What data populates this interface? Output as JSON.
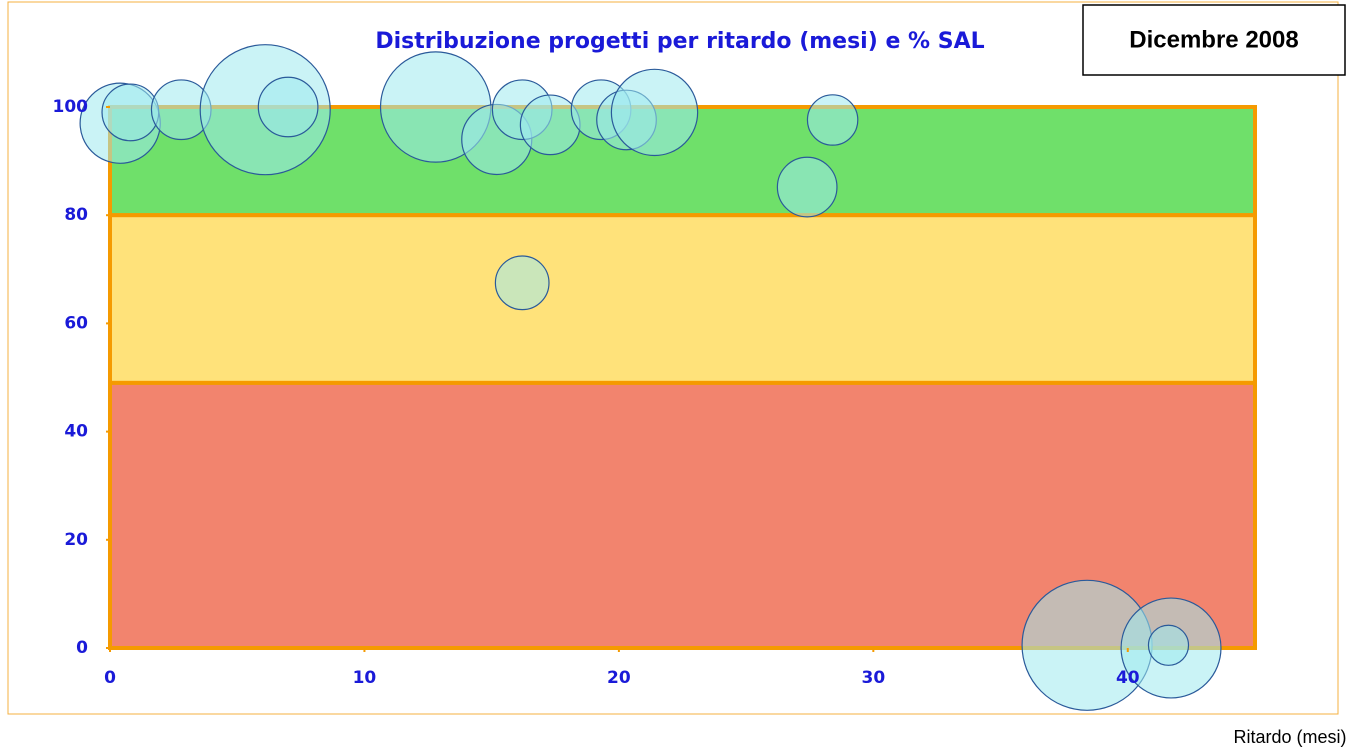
{
  "chart_data": {
    "type": "bubble",
    "title": "Distribuzione progetti per ritardo (mesi) e % SAL",
    "date_label": "Dicembre 2008",
    "x_label": "Ritardo (mesi)",
    "xlim": [
      0,
      45
    ],
    "xticks": [
      0,
      10,
      20,
      30,
      40
    ],
    "ylim": [
      0,
      100
    ],
    "yticks": [
      0,
      20,
      40,
      60,
      80,
      100
    ],
    "bands": [
      {
        "from": 80,
        "to": 100,
        "color": "#6fe06a"
      },
      {
        "from": 49,
        "to": 80,
        "color": "#ffe27a"
      },
      {
        "from": 0,
        "to": 49,
        "color": "#f2846e"
      }
    ],
    "band_border": "#f59a00",
    "bubble_color": "#9fe9ee",
    "bubble_edge": "#2a5a9a",
    "series": [
      {
        "x": [
          0.4,
          0.8,
          2.8,
          6.1,
          7,
          12.8,
          15.2,
          16.2,
          17.3,
          19.3,
          20.3,
          21.4,
          28.4,
          27.4,
          16.2,
          38.4,
          41.7,
          41.6
        ],
        "values": [
          97,
          99,
          99.5,
          99.5,
          100,
          100,
          94,
          99.5,
          96.7,
          99.5,
          97.6,
          99,
          97.6,
          85.2,
          67.5,
          0.5,
          0,
          0.5
        ],
        "sizes": [
          38,
          19,
          21,
          100,
          21,
          72,
          29,
          21,
          21,
          21,
          21,
          44,
          15,
          21,
          17,
          100,
          59,
          9.5
        ]
      }
    ]
  }
}
